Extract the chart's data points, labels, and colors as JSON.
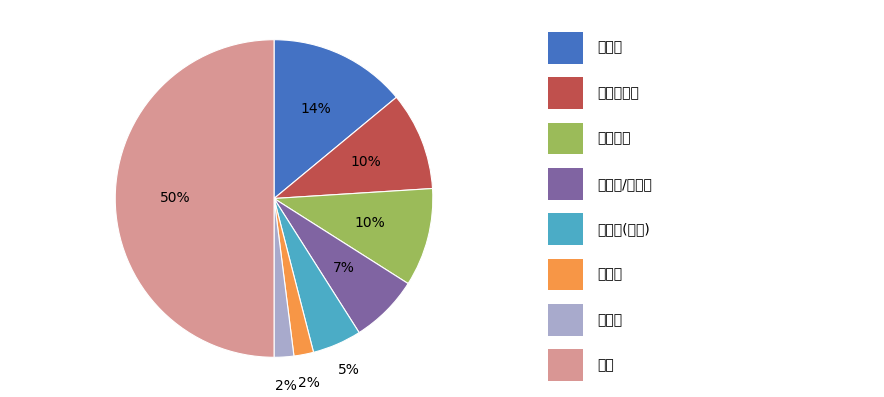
{
  "labels": [
    "혈당계",
    "게이트웨이",
    "심전도계",
    "체성분/체지방",
    "요화학(소변)",
    "혈압계",
    "체온계",
    "기타"
  ],
  "sizes": [
    14,
    10,
    10,
    7,
    5,
    2,
    2,
    50
  ],
  "colors": [
    "#4472C4",
    "#C0504D",
    "#9BBB59",
    "#8064A2",
    "#4BACC6",
    "#F79646",
    "#A8AACC",
    "#D99694"
  ],
  "pct_labels": [
    "14%",
    "10%",
    "10%",
    "7%",
    "5%",
    "2%",
    "2%",
    "50%"
  ],
  "startangle": 90,
  "legend_fontsize": 10,
  "label_fontsize": 10,
  "background_color": "#FFFFFF",
  "edge_color": "#FFFFFF"
}
